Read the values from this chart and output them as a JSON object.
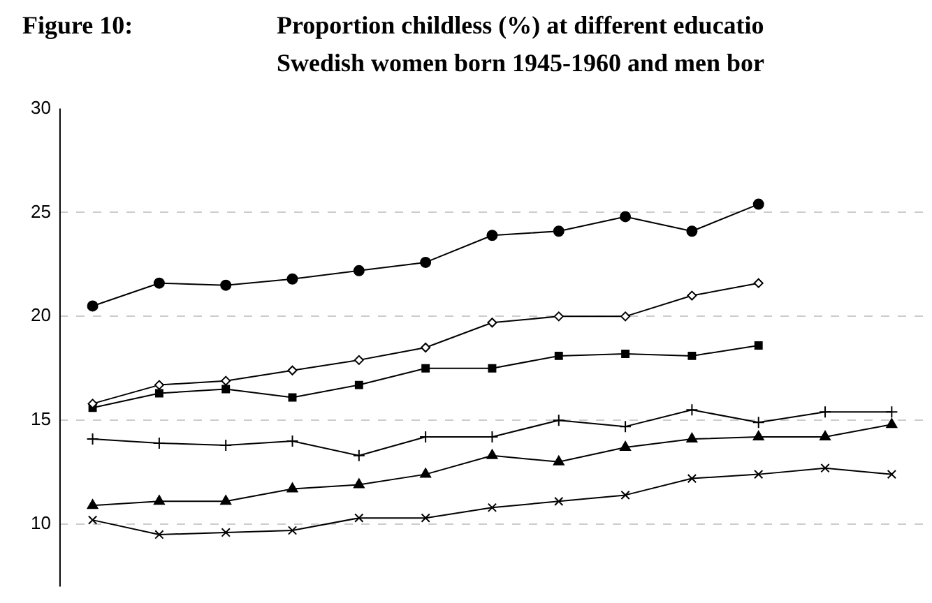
{
  "chart_data": {
    "type": "line",
    "title": "Figure 10:",
    "subtitle": [
      "Proportion childless (%) at different educatio",
      "Swedish women born 1945-1960 and men bor"
    ],
    "categories": [
      null,
      null,
      null,
      null,
      null,
      null,
      null,
      null,
      null,
      null,
      null,
      null,
      null
    ],
    "series": [
      {
        "color": "#000000",
        "marker": "circle",
        "values": [
          20.5,
          21.6,
          21.5,
          21.8,
          22.2,
          22.6,
          23.9,
          24.1,
          24.8,
          24.1,
          25.4,
          null,
          null
        ]
      },
      {
        "color": "#000000",
        "marker": "diamond",
        "values": [
          15.8,
          16.7,
          16.9,
          17.4,
          17.9,
          18.5,
          19.7,
          20.0,
          20.0,
          21.0,
          21.6,
          null,
          null
        ]
      },
      {
        "color": "#000000",
        "marker": "square",
        "values": [
          15.6,
          16.3,
          16.5,
          16.1,
          16.7,
          17.5,
          17.5,
          18.1,
          18.2,
          18.1,
          18.6,
          null,
          null
        ]
      },
      {
        "color": "#000000",
        "marker": "cross",
        "values": [
          14.1,
          13.9,
          13.8,
          14.0,
          13.3,
          14.2,
          14.2,
          15.0,
          14.7,
          15.5,
          14.9,
          15.4,
          15.4
        ]
      },
      {
        "color": "#000000",
        "marker": "triangle",
        "values": [
          10.9,
          11.1,
          11.1,
          11.7,
          11.9,
          12.4,
          13.3,
          13.0,
          13.7,
          14.1,
          14.2,
          14.2,
          14.8
        ]
      },
      {
        "color": "#000000",
        "marker": "x",
        "values": [
          10.2,
          9.5,
          9.6,
          9.7,
          10.3,
          10.3,
          10.8,
          11.1,
          11.4,
          12.2,
          12.4,
          12.7,
          12.4
        ]
      }
    ],
    "ylim": [
      7,
      30
    ],
    "yticks": [
      10,
      15,
      20,
      25,
      30
    ],
    "grid": "y",
    "legend": false,
    "tick_labels": "y"
  }
}
